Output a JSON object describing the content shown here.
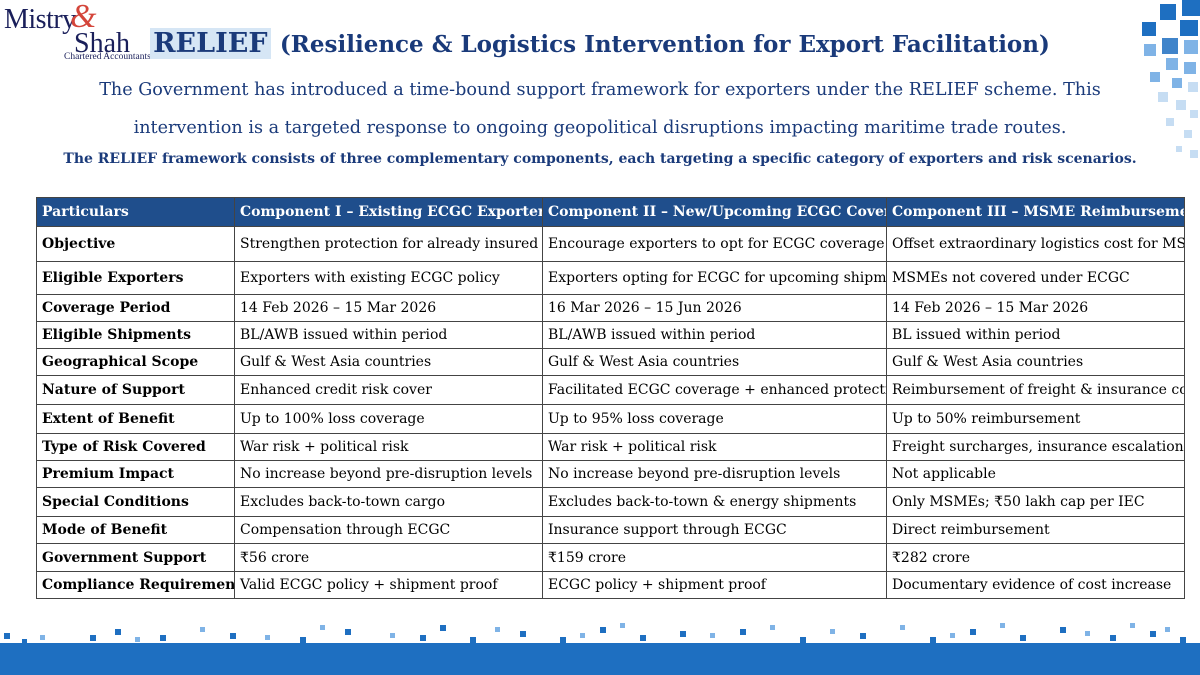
{
  "logo": {
    "line1": "Mistry",
    "amp": "&",
    "line2": "Shah",
    "line3": "Chartered Accountants"
  },
  "title": {
    "highlight": "RELIEF",
    "rest": "(Resilience & Logistics Intervention for Export Facilitation)"
  },
  "intro": [
    "The Government has introduced a time-bound support framework for exporters under the RELIEF scheme. This",
    "intervention is a targeted response to ongoing geopolitical disruptions impacting maritime trade routes."
  ],
  "subline": "The RELIEF framework consists of three complementary components, each targeting a specific category of exporters and risk scenarios.",
  "colors": {
    "header_bg": "#1f4e8c",
    "title": "#1a3a7a",
    "accent_bar": "#1e6fc1"
  },
  "table": {
    "headers": [
      "Particulars",
      "Component I – Existing ECGC Exporters",
      "Component II – New/Upcoming ECGC Coverage",
      "Component III – MSME Reimbursement"
    ],
    "rows": [
      [
        "Objective",
        "Strengthen protection for already insured",
        "Encourage exporters to opt for ECGC coverage",
        "Offset extraordinary logistics cost for MSMEs"
      ],
      [
        "Eligible Exporters",
        "Exporters with existing ECGC policy",
        "Exporters opting for ECGC for upcoming shipments",
        "MSMEs not covered under ECGC"
      ],
      [
        "Coverage Period",
        "14 Feb 2026 – 15 Mar 2026",
        "16 Mar 2026 – 15 Jun 2026",
        "14 Feb 2026 – 15 Mar 2026"
      ],
      [
        "Eligible Shipments",
        "BL/AWB issued within period",
        "BL/AWB issued within period",
        "BL issued within period"
      ],
      [
        "Geographical Scope",
        "Gulf & West Asia countries",
        "Gulf & West Asia countries",
        "Gulf & West Asia countries"
      ],
      [
        "Nature of Support",
        "Enhanced credit risk cover",
        "Facilitated ECGC coverage + enhanced protection",
        "Reimbursement of freight & insurance cost"
      ],
      [
        "Extent of Benefit",
        "Up to 100% loss coverage",
        "Up to 95% loss coverage",
        "Up to 50% reimbursement"
      ],
      [
        "Type of Risk Covered",
        "War risk + political risk",
        "War risk + political risk",
        "Freight surcharges, insurance escalation"
      ],
      [
        "Premium Impact",
        "No increase beyond pre-disruption levels",
        "No increase beyond pre-disruption levels",
        "Not applicable"
      ],
      [
        "Special Conditions",
        "Excludes back-to-town cargo",
        "Excludes back-to-town & energy shipments",
        "Only MSMEs; ₹50 lakh cap per IEC"
      ],
      [
        "Mode of Benefit",
        "Compensation through ECGC",
        "Insurance support through ECGC",
        "Direct reimbursement"
      ],
      [
        "Government Support",
        "₹56 crore",
        "₹159 crore",
        "₹282 crore"
      ],
      [
        "Compliance Requirement",
        "Valid ECGC policy + shipment proof",
        "ECGC policy + shipment proof",
        "Documentary evidence of cost increase"
      ]
    ]
  }
}
